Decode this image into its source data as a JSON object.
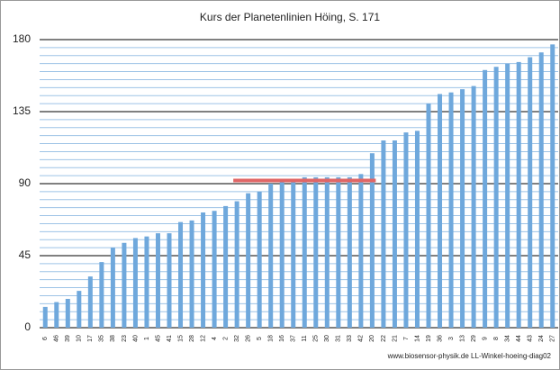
{
  "chart_data": {
    "type": "bar",
    "title": "Kurs der Planetenlinien Höing, S. 171",
    "categories": [
      "6",
      "46",
      "39",
      "10",
      "17",
      "35",
      "38",
      "23",
      "40",
      "1",
      "45",
      "41",
      "15",
      "28",
      "12",
      "4",
      "2",
      "32",
      "26",
      "5",
      "18",
      "16",
      "37",
      "11",
      "25",
      "30",
      "31",
      "33",
      "42",
      "20",
      "22",
      "21",
      "7",
      "14",
      "19",
      "36",
      "3",
      "13",
      "29",
      "9",
      "8",
      "34",
      "44",
      "43",
      "24",
      "27"
    ],
    "values": [
      13,
      16,
      18,
      23,
      32,
      41,
      50,
      53,
      56,
      57,
      59,
      59,
      66,
      67,
      72,
      73,
      76,
      79,
      84,
      85,
      90,
      91,
      92,
      94,
      94,
      94,
      94,
      94,
      96,
      109,
      117,
      117,
      122,
      123,
      140,
      146,
      147,
      149,
      151,
      161,
      163,
      165,
      166,
      169,
      172,
      177
    ],
    "color": "#6fa8dc",
    "ylim": [
      0,
      180
    ],
    "yticks": [
      0,
      45,
      90,
      135,
      180
    ],
    "grid": true,
    "minor_grid_step": 5,
    "reference_line": {
      "value": 92,
      "from": "32",
      "to": "20",
      "color": "#e06666"
    },
    "footer": "www.biosensor-physik.de LL-Winkel-hoeing-diag02"
  }
}
